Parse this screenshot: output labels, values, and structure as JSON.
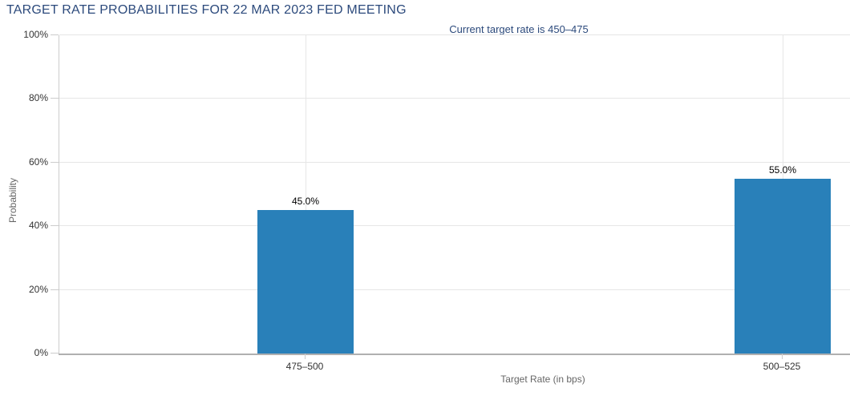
{
  "chart_data": {
    "type": "bar",
    "title": "TARGET RATE PROBABILITIES FOR 22 MAR 2023 FED MEETING",
    "subtitle": "Current target rate is 450–475",
    "categories": [
      "475–500",
      "500–525"
    ],
    "values": [
      45.0,
      55.0
    ],
    "value_labels": [
      "45.0%",
      "55.0%"
    ],
    "xlabel": "Target Rate (in bps)",
    "ylabel": "Probability",
    "ylim": [
      0,
      100
    ],
    "y_ticks": [
      0,
      20,
      40,
      60,
      80,
      100
    ],
    "y_tick_labels": [
      "0%",
      "20%",
      "40%",
      "60%",
      "80%",
      "100%"
    ],
    "grid": true,
    "legend": "none",
    "colors": {
      "bar": "#2980b9",
      "title": "#2c4a7c",
      "gridline": "#e6e6e6",
      "axis_line": "#b0b0b0",
      "tick_label": "#333333",
      "axis_title": "#666666",
      "value_label": "#000000"
    }
  }
}
